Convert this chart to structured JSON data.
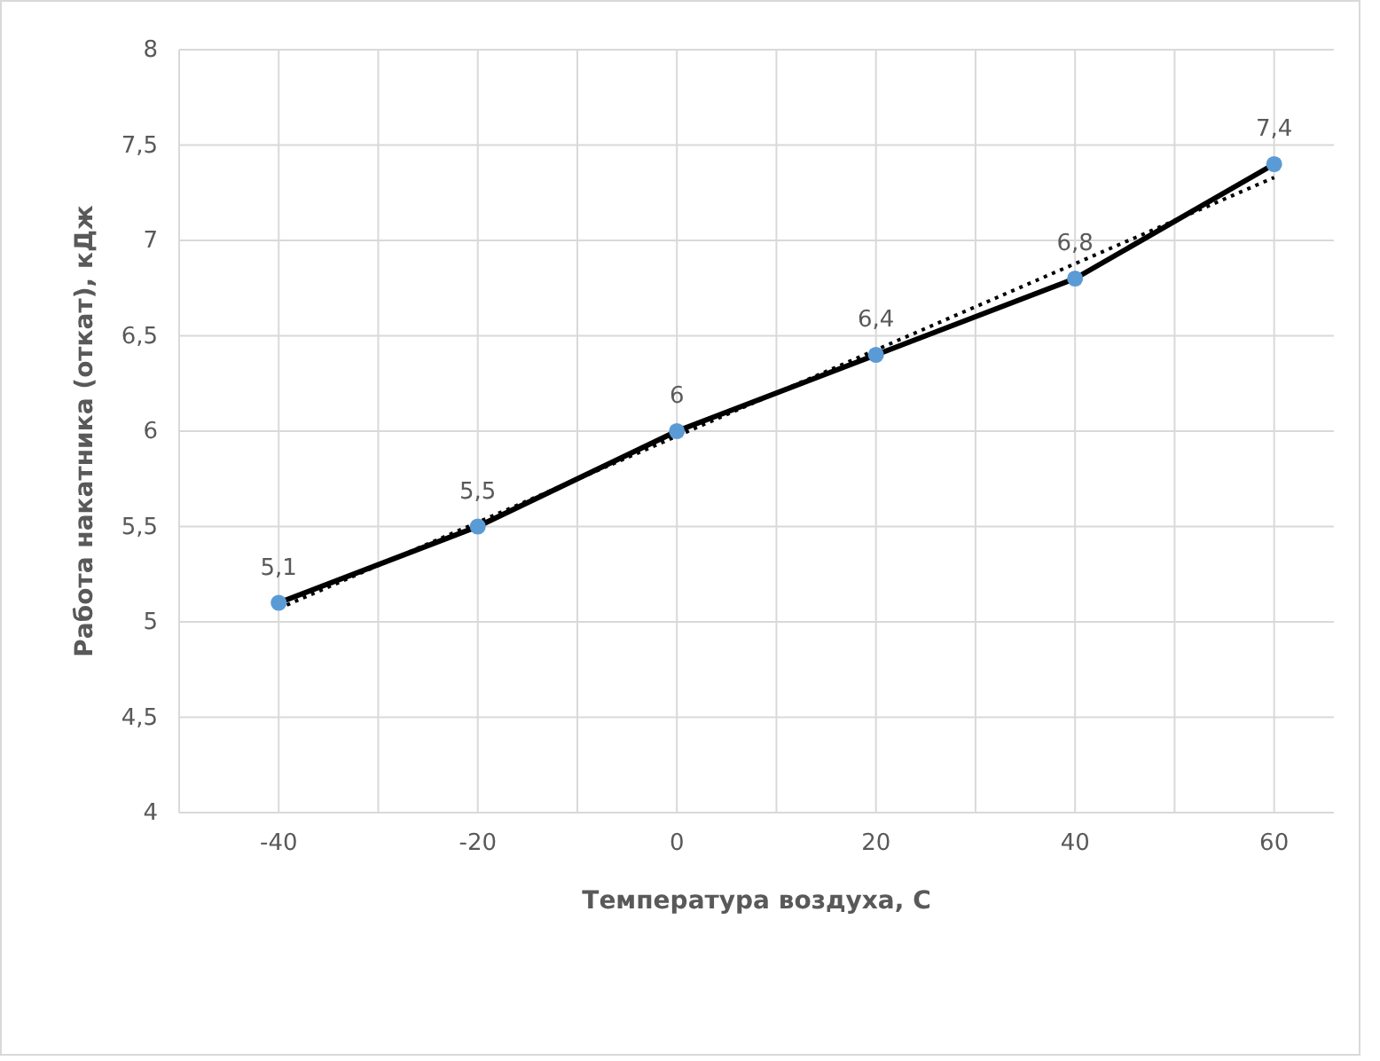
{
  "chart_data": {
    "type": "line",
    "xlabel": "Температура воздуха, С",
    "ylabel": "Работа накатника (откат), кДж",
    "xlim": [
      -50,
      66
    ],
    "xticks": [
      {
        "value": -50,
        "label": null
      },
      -40,
      {
        "value": -30,
        "label": null
      },
      -20,
      {
        "value": -10,
        "label": null
      },
      0,
      {
        "value": 10,
        "label": null
      },
      20,
      {
        "value": 30,
        "label": null
      },
      40,
      {
        "value": 50,
        "label": null
      },
      60
    ],
    "ylim": [
      4,
      8
    ],
    "yticks": [
      4,
      {
        "value": 4.5,
        "label": "4,5"
      },
      5,
      {
        "value": 5.5,
        "label": "5,5"
      },
      6,
      {
        "value": 6.5,
        "label": "6,5"
      },
      7,
      {
        "value": 7.5,
        "label": "7,5"
      },
      8
    ],
    "grid": true,
    "line_style": "solid",
    "series": [
      {
        "color": "#000000",
        "marker": "none",
        "x": [
          -40,
          -20,
          0,
          20,
          40,
          60
        ],
        "values": [
          5.1,
          5.5,
          6,
          6.4,
          6.8,
          7.4
        ]
      },
      {
        "color": "#000000",
        "marker": "none",
        "line_style": "dotted",
        "x": [
          -40,
          60
        ],
        "values": [
          5.07,
          7.33
        ]
      },
      {
        "type": "scatter",
        "color": "#5b9bd5",
        "marker": "circle",
        "x": [
          -40,
          -20,
          0,
          20,
          40,
          60
        ],
        "values": [
          5.1,
          5.5,
          6,
          6.4,
          6.8,
          7.4
        ],
        "value_labels": [
          "5,1",
          "5,5",
          "6",
          "6,4",
          "6,8",
          "7,4"
        ]
      }
    ]
  }
}
